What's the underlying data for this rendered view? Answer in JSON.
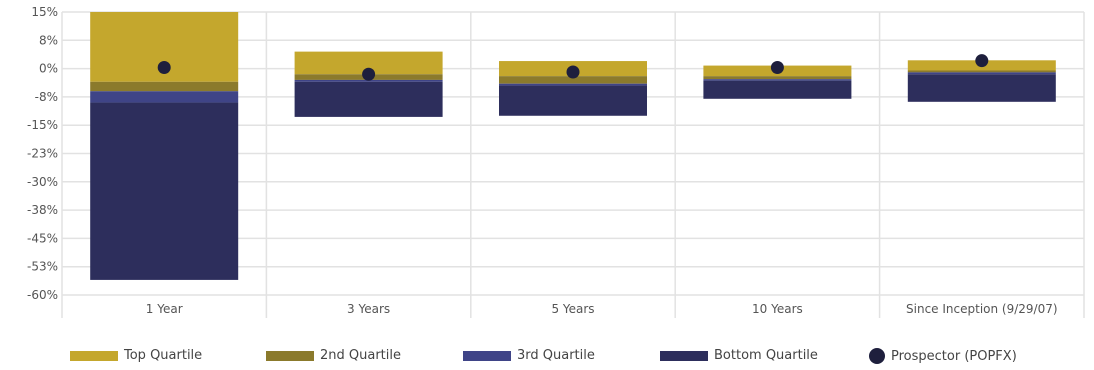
{
  "chart_data": {
    "type": "bar",
    "stacked_range": true,
    "categories": [
      "1 Year",
      "3 Years",
      "5 Years",
      "10 Years",
      "Since Inception (9/29/07)"
    ],
    "y_tick_labels": [
      "15%",
      "8%",
      "0%",
      "-8%",
      "-15%",
      "-23%",
      "-30%",
      "-38%",
      "-45%",
      "-53%",
      "-60%"
    ],
    "ylim": [
      -60,
      15
    ],
    "grid": true,
    "legend_position": "bottom",
    "series": [
      {
        "name": "Top Quartile",
        "color": "#c4a72d",
        "values": [
          [
            -3.5,
            15
          ],
          [
            -1.5,
            4.5
          ],
          [
            -2,
            2
          ],
          [
            -2,
            0.8
          ],
          [
            -0.5,
            2.2
          ]
        ]
      },
      {
        "name": "2nd Quartile",
        "color": "#8b7a2c",
        "values": [
          [
            -6,
            -3.5
          ],
          [
            -3,
            -1.5
          ],
          [
            -4,
            -2
          ],
          [
            -2.8,
            -2
          ],
          [
            -1,
            -0.5
          ]
        ]
      },
      {
        "name": "3rd Quartile",
        "color": "#3f4487",
        "values": [
          [
            -9,
            -6
          ],
          [
            -3.5,
            -3
          ],
          [
            -4.5,
            -4
          ],
          [
            -3.2,
            -2.8
          ],
          [
            -1.5,
            -1
          ]
        ]
      },
      {
        "name": "Bottom Quartile",
        "color": "#2d2e5c",
        "values": [
          [
            -56,
            -9
          ],
          [
            -12.8,
            -3.5
          ],
          [
            -12.5,
            -4.5
          ],
          [
            -8,
            -3.2
          ],
          [
            -8.8,
            -1.5
          ]
        ]
      }
    ],
    "points": {
      "name": "Prospector (POPFX)",
      "color": "#1e1f3d",
      "values": [
        0.3,
        -1.5,
        -0.9,
        0.3,
        2.1
      ]
    }
  }
}
